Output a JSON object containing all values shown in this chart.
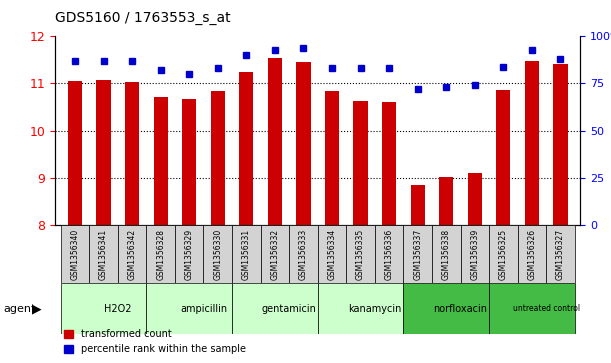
{
  "title": "GDS5160 / 1763553_s_at",
  "samples": [
    "GSM1356340",
    "GSM1356341",
    "GSM1356342",
    "GSM1356328",
    "GSM1356329",
    "GSM1356330",
    "GSM1356331",
    "GSM1356332",
    "GSM1356333",
    "GSM1356334",
    "GSM1356335",
    "GSM1356336",
    "GSM1356337",
    "GSM1356338",
    "GSM1356339",
    "GSM1356325",
    "GSM1356326",
    "GSM1356327"
  ],
  "bar_values": [
    11.05,
    11.08,
    11.04,
    10.72,
    10.68,
    10.84,
    11.24,
    11.55,
    11.45,
    10.85,
    10.62,
    10.6,
    8.85,
    9.02,
    9.1,
    10.86,
    11.48,
    11.42
  ],
  "percentile_values": [
    87,
    87,
    87,
    82,
    80,
    83,
    90,
    93,
    94,
    83,
    83,
    83,
    72,
    73,
    74,
    84,
    93,
    88
  ],
  "groups": [
    {
      "label": "H2O2",
      "start": 0,
      "end": 3,
      "color": "#ccffcc"
    },
    {
      "label": "ampicillin",
      "start": 3,
      "end": 6,
      "color": "#ccffcc"
    },
    {
      "label": "gentamicin",
      "start": 6,
      "end": 9,
      "color": "#ccffcc"
    },
    {
      "label": "kanamycin",
      "start": 9,
      "end": 12,
      "color": "#ccffcc"
    },
    {
      "label": "norfloxacin",
      "start": 12,
      "end": 15,
      "color": "#44cc44"
    },
    {
      "label": "untreated control",
      "start": 15,
      "end": 18,
      "color": "#44cc44"
    }
  ],
  "ymin": 8,
  "ymax": 12,
  "yticks": [
    8,
    9,
    10,
    11,
    12
  ],
  "right_yticks": [
    0,
    25,
    50,
    75,
    100
  ],
  "bar_color": "#cc0000",
  "marker_color": "#0000cc",
  "background_color": "#ffffff",
  "grid_color": "#000000",
  "agent_label": "agent"
}
